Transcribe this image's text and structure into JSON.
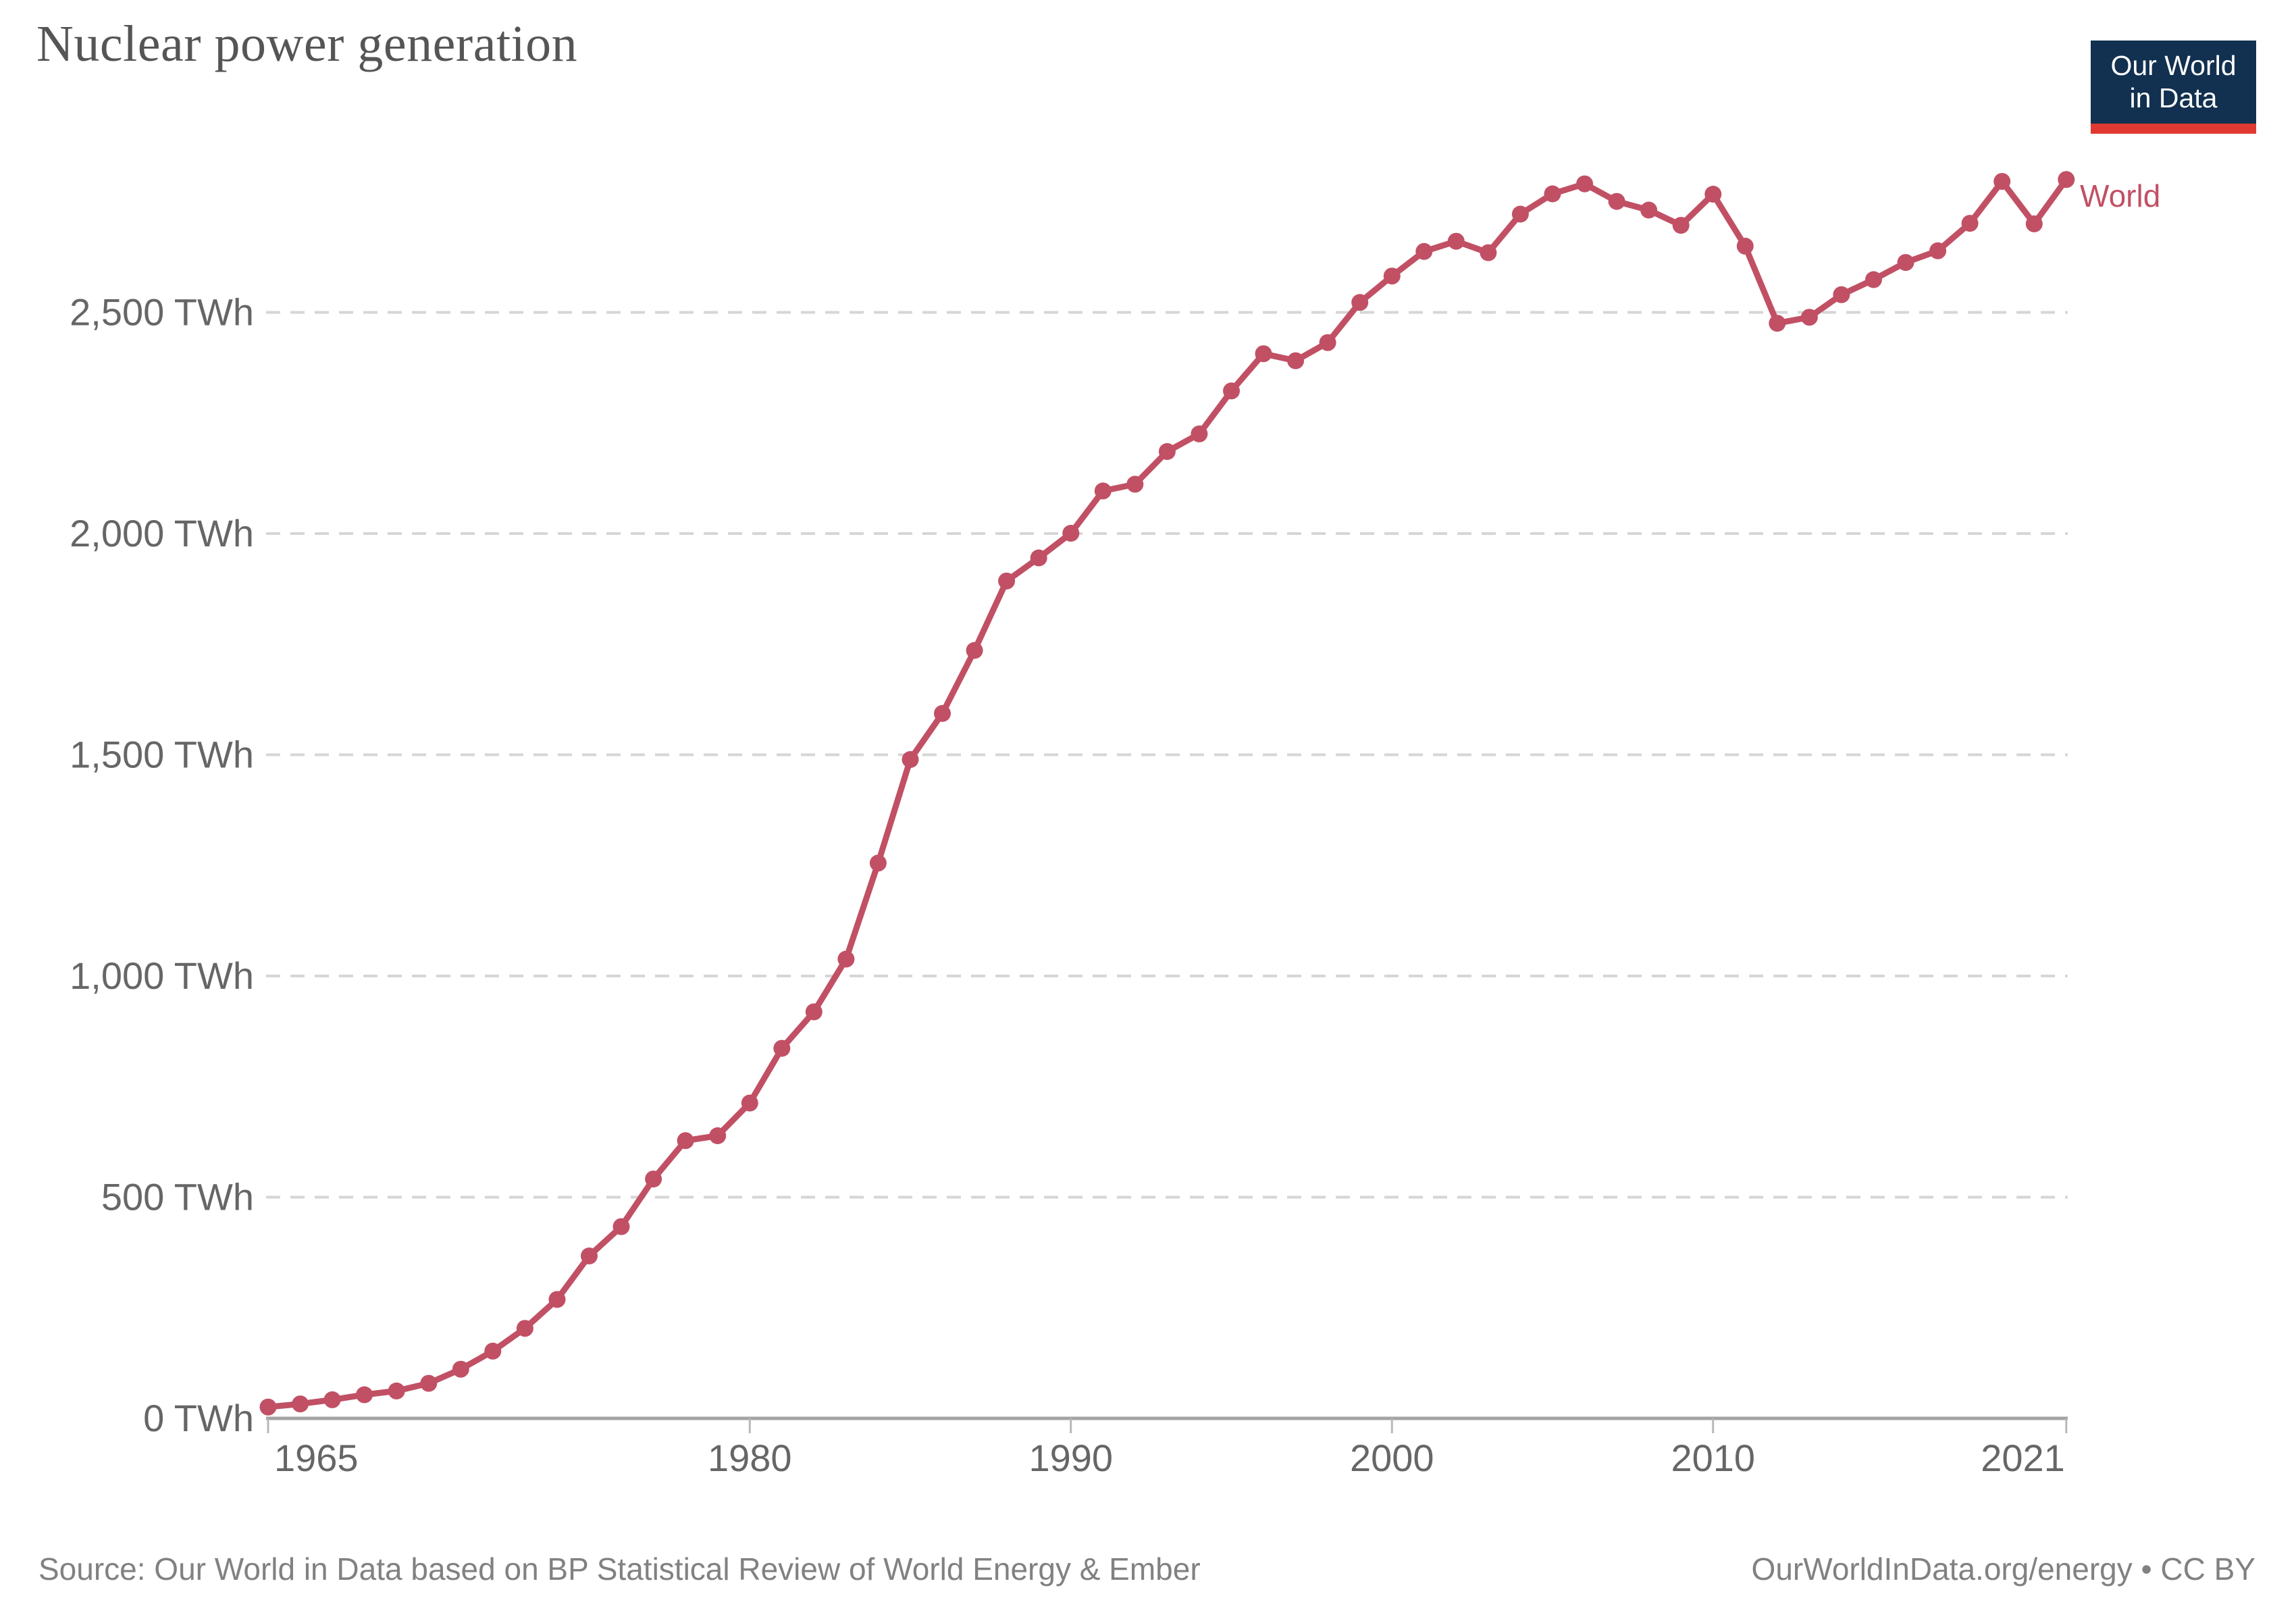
{
  "header": {
    "title": "Nuclear power generation"
  },
  "logo": {
    "line1": "Our World",
    "line2": "in Data",
    "bg_color": "#12304f",
    "bar_color": "#e03931"
  },
  "footer": {
    "source": "Source: Our World in Data based on BP Statistical Review of World Energy & Ember",
    "attribution": "OurWorldInData.org/energy • CC BY"
  },
  "colors": {
    "line": "#C15065",
    "title": "#555555",
    "axis_text": "#666666",
    "gridline": "#d6d6d6",
    "axis_line": "#a3a3a3",
    "tick_mark": "#b8b8b8",
    "footer_text": "#818181"
  },
  "chart_data": {
    "type": "line",
    "title": "Nuclear power generation",
    "unit": "TWh",
    "grid": "dashed-horizontal",
    "legend_position": "end-of-line-label",
    "series_label": "World",
    "x": [
      1965,
      1966,
      1967,
      1968,
      1969,
      1970,
      1971,
      1972,
      1973,
      1974,
      1975,
      1976,
      1977,
      1978,
      1979,
      1980,
      1981,
      1982,
      1983,
      1984,
      1985,
      1986,
      1987,
      1988,
      1989,
      1990,
      1991,
      1992,
      1993,
      1994,
      1995,
      1996,
      1997,
      1998,
      1999,
      2000,
      2001,
      2002,
      2003,
      2004,
      2005,
      2006,
      2007,
      2008,
      2009,
      2010,
      2011,
      2012,
      2013,
      2014,
      2015,
      2016,
      2017,
      2018,
      2019,
      2020,
      2021
    ],
    "series": [
      {
        "name": "World",
        "values": [
          25.7,
          32.7,
          42.2,
          53.4,
          62.0,
          79.3,
          111.1,
          152.1,
          203.5,
          268.8,
          367.2,
          433.5,
          541.0,
          627.8,
          639.0,
          712.9,
          836.5,
          919.0,
          1038.1,
          1255.3,
          1489.3,
          1593.5,
          1735.9,
          1892.8,
          1945.0,
          2000.7,
          2096.3,
          2111.6,
          2185.5,
          2225.3,
          2322.5,
          2406.5,
          2390.7,
          2431.8,
          2522.4,
          2582.2,
          2637.7,
          2660.8,
          2634.9,
          2722.2,
          2767.9,
          2790.6,
          2750.8,
          2731.3,
          2696.8,
          2767.1,
          2649.8,
          2475.4,
          2489.0,
          2540.0,
          2574.1,
          2612.8,
          2639.2,
          2701.4,
          2796.0,
          2700.1,
          2800.3
        ]
      }
    ],
    "yticks": [
      {
        "value": 0,
        "label": "0 TWh"
      },
      {
        "value": 500,
        "label": "500 TWh"
      },
      {
        "value": 1000,
        "label": "1,000 TWh"
      },
      {
        "value": 1500,
        "label": "1,500 TWh"
      },
      {
        "value": 2000,
        "label": "2,000 TWh"
      },
      {
        "value": 2500,
        "label": "2,500 TWh"
      }
    ],
    "xticks": [
      1965,
      1980,
      1990,
      2000,
      2010,
      2021
    ],
    "xlim": [
      1965,
      2021
    ],
    "ylim": [
      0,
      2800
    ]
  }
}
